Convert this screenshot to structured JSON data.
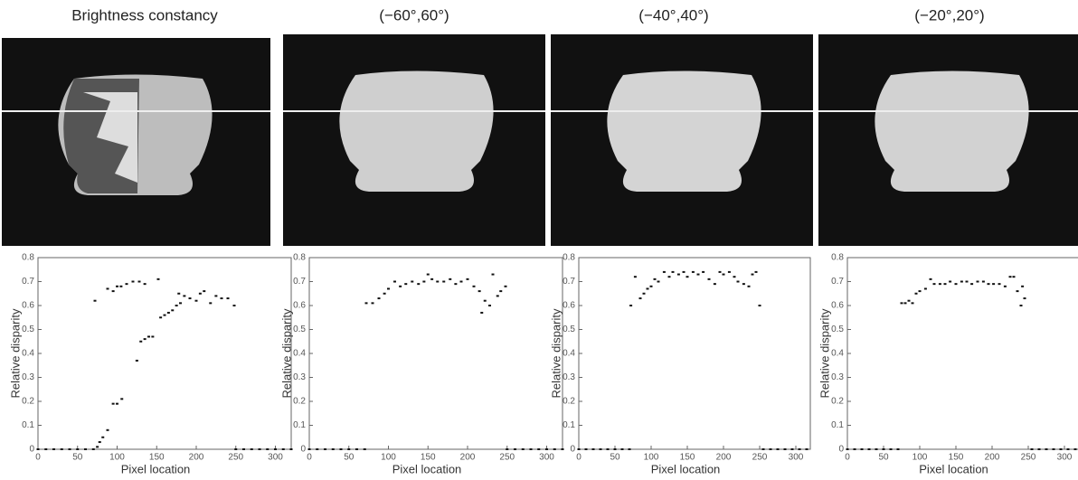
{
  "chart_data": [
    {
      "type": "scatter",
      "title": "Brightness constancy",
      "xlabel": "Pixel location",
      "ylabel": "Relative disparity",
      "xlim": [
        0,
        320
      ],
      "xticks": [
        0,
        50,
        100,
        150,
        200,
        250,
        300
      ],
      "ylim": [
        0,
        0.8
      ],
      "yticks": [
        0,
        0.1,
        0.2,
        0.3,
        0.4,
        0.5,
        0.6,
        0.7,
        0.8
      ],
      "color": "#111",
      "x": [
        0,
        10,
        20,
        30,
        40,
        50,
        60,
        70,
        75,
        78,
        82,
        88,
        95,
        100,
        106,
        125,
        130,
        135,
        140,
        145,
        155,
        160,
        165,
        170,
        175,
        180,
        72,
        88,
        95,
        100,
        105,
        112,
        120,
        128,
        135,
        152,
        178,
        185,
        192,
        200,
        205,
        210,
        218,
        225,
        232,
        240,
        248,
        250,
        260,
        270,
        280,
        290,
        300,
        310,
        320
      ],
      "values": [
        0,
        0,
        0,
        0,
        0,
        0,
        0,
        0,
        0.01,
        0.03,
        0.05,
        0.08,
        0.19,
        0.19,
        0.21,
        0.37,
        0.45,
        0.46,
        0.47,
        0.47,
        0.55,
        0.56,
        0.57,
        0.58,
        0.6,
        0.61,
        0.62,
        0.67,
        0.66,
        0.68,
        0.68,
        0.69,
        0.7,
        0.7,
        0.69,
        0.71,
        0.65,
        0.64,
        0.63,
        0.62,
        0.65,
        0.66,
        0.61,
        0.64,
        0.63,
        0.63,
        0.6,
        0,
        0,
        0,
        0,
        0,
        0,
        0,
        0
      ]
    },
    {
      "type": "scatter",
      "title": "(−60°,60°)",
      "xlabel": "Pixel location",
      "ylabel": "Relative disparity",
      "xlim": [
        0,
        320
      ],
      "xticks": [
        0,
        50,
        100,
        150,
        200,
        250,
        300
      ],
      "ylim": [
        0,
        0.8
      ],
      "yticks": [
        0,
        0.1,
        0.2,
        0.3,
        0.4,
        0.5,
        0.6,
        0.7,
        0.8
      ],
      "color": "#111",
      "x": [
        0,
        10,
        20,
        30,
        40,
        50,
        60,
        70,
        72,
        80,
        88,
        95,
        100,
        108,
        115,
        122,
        130,
        138,
        145,
        150,
        155,
        162,
        170,
        178,
        185,
        192,
        200,
        208,
        215,
        218,
        222,
        228,
        232,
        238,
        242,
        248,
        250,
        260,
        270,
        280,
        290,
        300,
        310,
        320
      ],
      "values": [
        0,
        0,
        0,
        0,
        0,
        0,
        0,
        0,
        0.61,
        0.61,
        0.63,
        0.65,
        0.67,
        0.7,
        0.68,
        0.69,
        0.7,
        0.69,
        0.7,
        0.73,
        0.71,
        0.7,
        0.7,
        0.71,
        0.69,
        0.7,
        0.71,
        0.68,
        0.66,
        0.57,
        0.62,
        0.6,
        0.73,
        0.64,
        0.66,
        0.68,
        0,
        0,
        0,
        0,
        0,
        0,
        0,
        0
      ]
    },
    {
      "type": "scatter",
      "title": "(−40°,40°)",
      "xlabel": "Pixel location",
      "ylabel": "Relative disparity",
      "xlim": [
        0,
        320
      ],
      "xticks": [
        0,
        50,
        100,
        150,
        200,
        250,
        300
      ],
      "ylim": [
        0,
        0.8
      ],
      "yticks": [
        0,
        0.1,
        0.2,
        0.3,
        0.4,
        0.5,
        0.6,
        0.7,
        0.8
      ],
      "color": "#111",
      "x": [
        0,
        10,
        20,
        30,
        40,
        50,
        60,
        70,
        72,
        78,
        85,
        90,
        95,
        100,
        105,
        110,
        118,
        125,
        130,
        138,
        145,
        150,
        158,
        165,
        172,
        180,
        188,
        195,
        200,
        208,
        215,
        220,
        228,
        235,
        240,
        245,
        250,
        255,
        265,
        275,
        285,
        295,
        305,
        315
      ],
      "values": [
        0,
        0,
        0,
        0,
        0,
        0,
        0,
        0,
        0.6,
        0.72,
        0.63,
        0.65,
        0.67,
        0.68,
        0.71,
        0.7,
        0.74,
        0.72,
        0.74,
        0.73,
        0.74,
        0.72,
        0.74,
        0.73,
        0.74,
        0.71,
        0.69,
        0.74,
        0.73,
        0.74,
        0.72,
        0.7,
        0.69,
        0.68,
        0.73,
        0.74,
        0.6,
        0,
        0,
        0,
        0,
        0,
        0,
        0
      ]
    },
    {
      "type": "scatter",
      "title": "(−20°,20°)",
      "xlabel": "Pixel location",
      "ylabel": "Relative disparity",
      "xlim": [
        0,
        320
      ],
      "xticks": [
        0,
        50,
        100,
        150,
        200,
        250,
        300
      ],
      "ylim": [
        0,
        0.8
      ],
      "yticks": [
        0,
        0.1,
        0.2,
        0.3,
        0.4,
        0.5,
        0.6,
        0.7,
        0.8
      ],
      "color": "#111",
      "x": [
        0,
        10,
        20,
        30,
        40,
        50,
        60,
        70,
        75,
        80,
        85,
        90,
        95,
        100,
        108,
        115,
        120,
        128,
        135,
        142,
        150,
        158,
        165,
        172,
        180,
        188,
        195,
        202,
        210,
        218,
        225,
        230,
        235,
        240,
        242,
        245,
        255,
        265,
        275,
        285,
        295,
        305,
        315
      ],
      "values": [
        0,
        0,
        0,
        0,
        0,
        0,
        0,
        0,
        0.61,
        0.61,
        0.62,
        0.61,
        0.65,
        0.66,
        0.67,
        0.71,
        0.69,
        0.69,
        0.69,
        0.7,
        0.69,
        0.7,
        0.7,
        0.69,
        0.7,
        0.7,
        0.69,
        0.69,
        0.69,
        0.68,
        0.72,
        0.72,
        0.66,
        0.6,
        0.68,
        0.63,
        0,
        0,
        0,
        0,
        0,
        0,
        0
      ]
    }
  ]
}
